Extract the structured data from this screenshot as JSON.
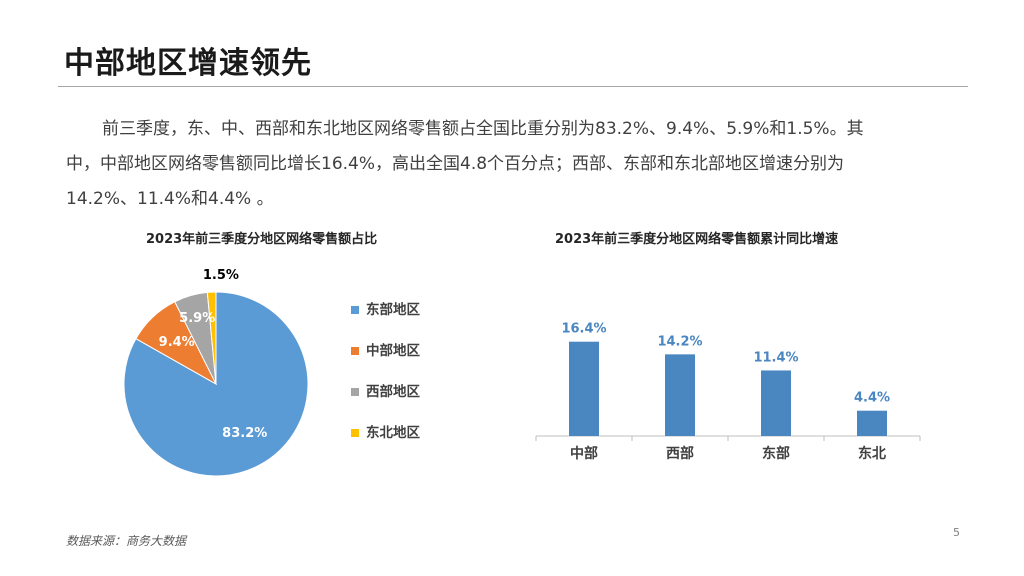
{
  "slide": {
    "title": "中部地区增速领先",
    "paragraph_line1": "前三季度，东、中、西部和东北地区网络零售额占全国比重分别为83.2%、9.4%、5.9%和1.5%。其",
    "paragraph_line2": "中，中部地区网络零售额同比增长16.4%，高出全国4.8个百分点；西部、东部和东北部地区增速分别为",
    "paragraph_line3": "14.2%、11.4%和4.4% 。",
    "source": "数据来源：商务大数据",
    "page_number": "5"
  },
  "chart_data": [
    {
      "type": "pie",
      "title": "2023年前三季度分地区网络零售额占比",
      "categories": [
        "东部地区",
        "中部地区",
        "西部地区",
        "东北地区"
      ],
      "values": [
        83.2,
        9.4,
        5.9,
        1.5
      ],
      "labels": [
        "83.2%",
        "9.4%",
        "5.9%",
        "1.5%"
      ],
      "colors": [
        "#5b9bd5",
        "#ed7d31",
        "#a5a5a5",
        "#ffc000"
      ],
      "legend_position": "right"
    },
    {
      "type": "bar",
      "title": "2023年前三季度分地区网络零售额累计同比增速",
      "categories": [
        "中部",
        "西部",
        "东部",
        "东北"
      ],
      "values": [
        16.4,
        14.2,
        11.4,
        4.4
      ],
      "labels": [
        "16.4%",
        "14.2%",
        "11.4%",
        "4.4%"
      ],
      "color": "#4a86c0",
      "label_color": "#4a86c0",
      "ylim": [
        0,
        20
      ],
      "grid": false
    }
  ]
}
